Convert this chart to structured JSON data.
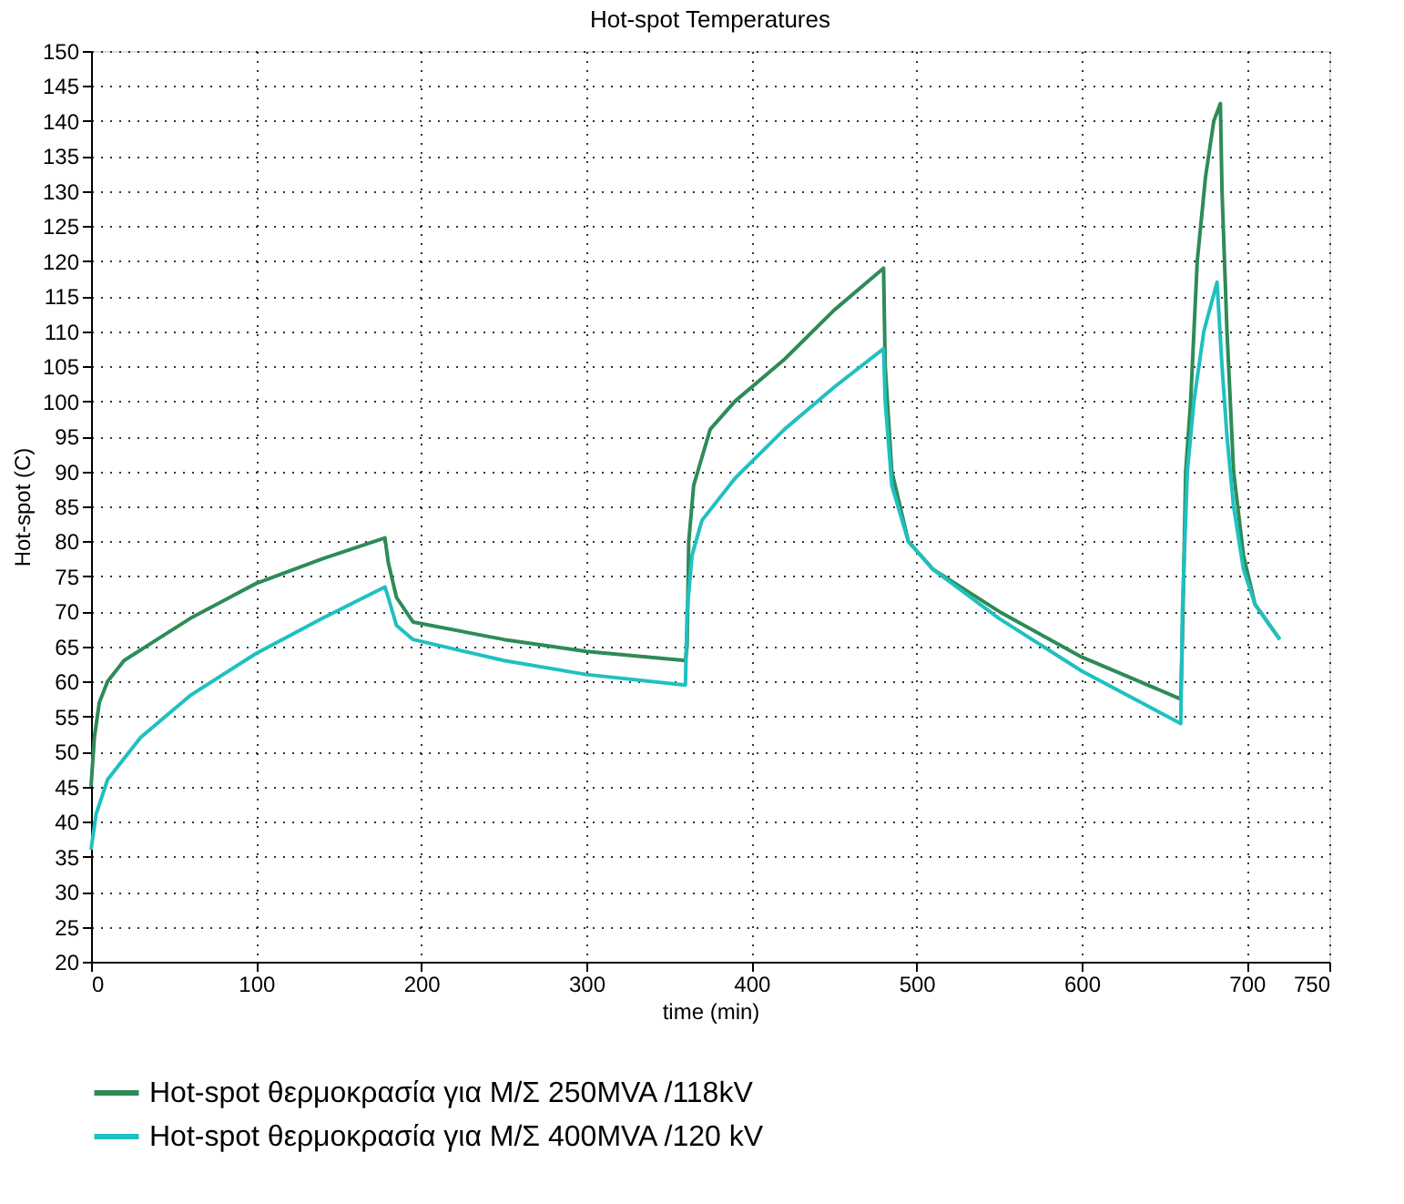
{
  "chart_data": {
    "type": "line",
    "title": "Hot-spot Temperatures",
    "xlabel": "time (min)",
    "ylabel": "Hot-spot (C)",
    "xlim": [
      0,
      750
    ],
    "xticks": [
      0,
      100,
      200,
      300,
      400,
      500,
      600,
      700,
      750
    ],
    "ylim": [
      20,
      150
    ],
    "yticks": [
      20,
      25,
      30,
      35,
      40,
      45,
      50,
      55,
      60,
      65,
      70,
      75,
      80,
      85,
      90,
      95,
      100,
      105,
      110,
      115,
      120,
      125,
      130,
      135,
      140,
      145,
      150
    ],
    "grid": true,
    "legend": "bottom",
    "line_style": "solid",
    "series": [
      {
        "name": "Hot-spot θερμοκρασία για Μ/Σ 250MVA /118kV",
        "color": "#2e8b57",
        "x": [
          0,
          2,
          5,
          10,
          20,
          40,
          60,
          100,
          140,
          178,
          180,
          185,
          195,
          250,
          300,
          360,
          361,
          362,
          365,
          375,
          390,
          420,
          450,
          480,
          481,
          485,
          495,
          510,
          550,
          600,
          660,
          661,
          663,
          666,
          670,
          675,
          680,
          684,
          685,
          688,
          692,
          698,
          705,
          720
        ],
        "values": [
          45,
          52,
          57,
          60,
          63,
          66,
          69,
          74,
          77.5,
          80.5,
          77,
          72,
          68.5,
          66,
          64.3,
          63,
          65,
          80,
          88,
          96,
          100,
          106,
          113,
          119,
          105,
          90,
          80,
          76,
          70,
          63.5,
          57.5,
          66,
          90,
          100,
          120,
          132,
          140,
          142.5,
          130,
          110,
          90,
          78,
          71,
          66
        ]
      },
      {
        "name": "Hot-spot θερμοκρασία για Μ/Σ 400MVA /120 kV",
        "color": "#20c0c0",
        "x": [
          0,
          3,
          10,
          30,
          60,
          100,
          140,
          178,
          180,
          185,
          195,
          250,
          300,
          360,
          361,
          364,
          370,
          390,
          420,
          450,
          480,
          481,
          485,
          495,
          510,
          550,
          600,
          660,
          661,
          664,
          668,
          674,
          682,
          685,
          688,
          692,
          698,
          705,
          720
        ],
        "values": [
          36,
          41,
          46,
          52,
          58,
          64,
          69,
          73.5,
          72,
          68,
          66,
          63,
          61,
          59.5,
          70,
          78,
          83,
          89,
          96,
          102,
          107.5,
          100,
          88,
          80,
          76,
          69,
          61.5,
          54,
          70,
          90,
          100,
          110,
          117,
          105,
          95,
          85,
          76,
          71,
          66
        ]
      }
    ]
  }
}
